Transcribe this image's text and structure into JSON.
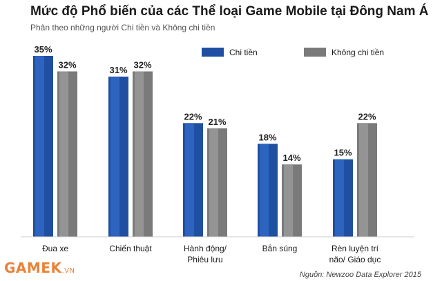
{
  "header": {
    "title": "Mức độ Phổ biến của các Thể loại Game Mobile tại Đông Nam Á",
    "subtitle": "Phân theo những người Chi tiền và Không chi tiền"
  },
  "footer": {
    "logo": "GAMEK",
    "logo_suffix": ".VN",
    "source": "Nguồn: Newzoo Data Explorer 2015"
  },
  "colors": {
    "paying": "#1f4fa0",
    "paying_light": "#2e63c0",
    "non_paying": "#7a7a7a",
    "non_paying_light": "#949494"
  },
  "chart_data": {
    "type": "bar",
    "title": "Mức độ Phổ biến của các Thể loại Game Mobile tại Đông Nam Á",
    "subtitle": "Phân theo những người Chi tiền và Không chi tiền",
    "categories": [
      [
        "Đua xe"
      ],
      [
        "Chiến thuật"
      ],
      [
        "Hành động/",
        "Phiêu lưu"
      ],
      [
        "Bắn súng"
      ],
      [
        "Rèn luyện trí",
        "não/ Giáo dục"
      ]
    ],
    "series": [
      {
        "name": "Chi tiền",
        "values": [
          35,
          31,
          22,
          18,
          15
        ]
      },
      {
        "name": "Không chi tiền",
        "values": [
          32,
          32,
          21,
          14,
          22
        ]
      }
    ],
    "value_suffix": "%",
    "ylim": [
      0,
      35
    ],
    "grid": false,
    "legend": "top-right"
  }
}
